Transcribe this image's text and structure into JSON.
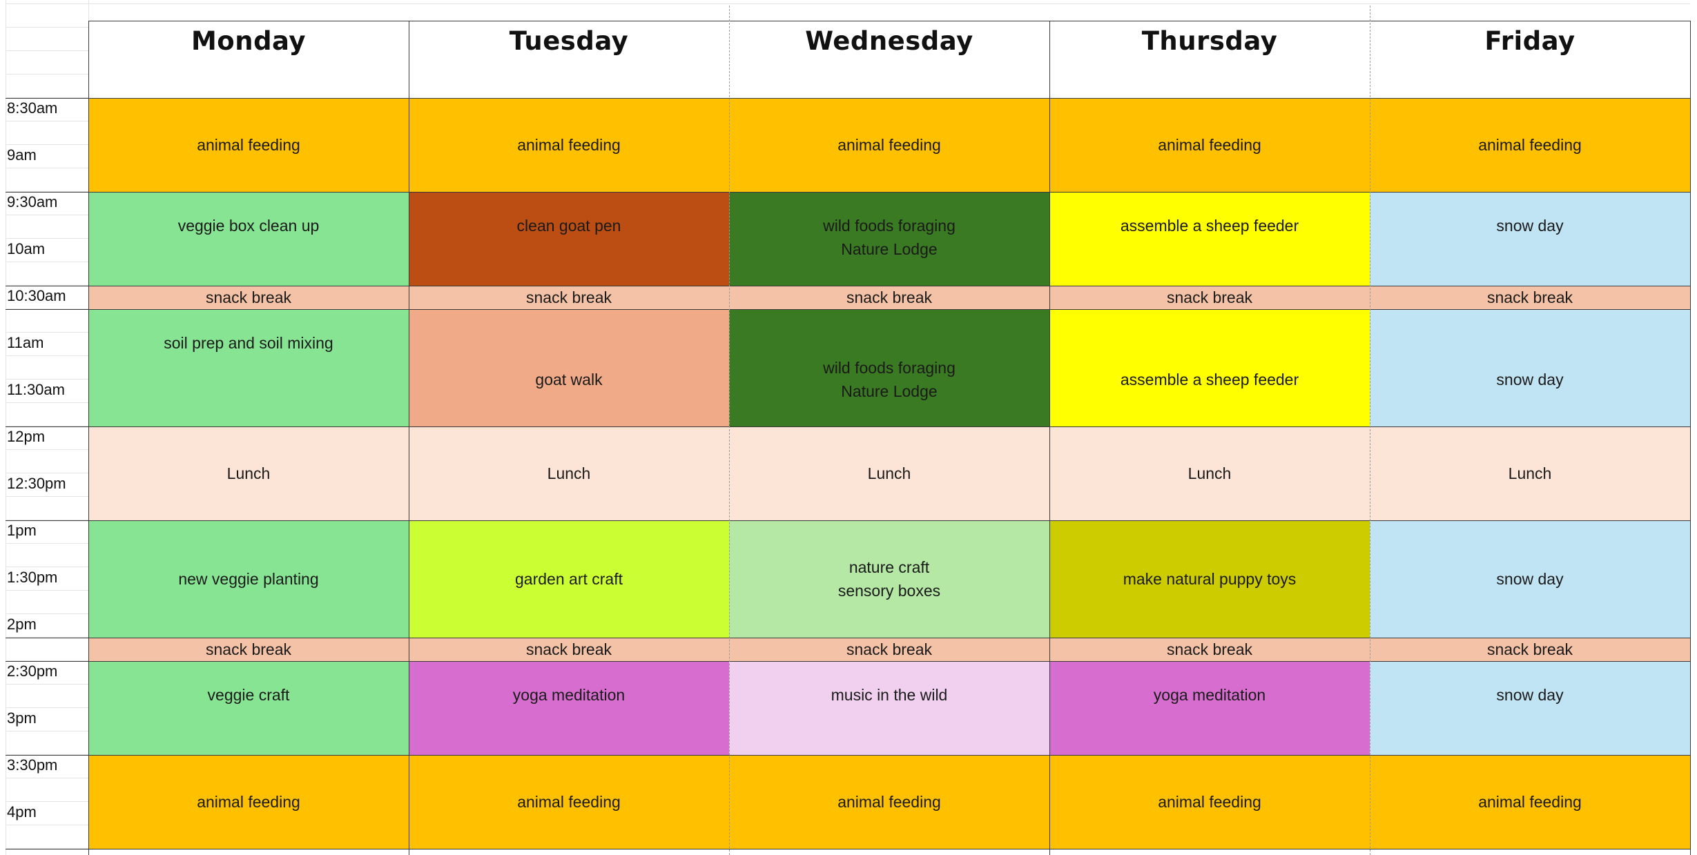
{
  "days": [
    "Monday",
    "Tuesday",
    "Wednesday",
    "Thursday",
    "Friday"
  ],
  "times": [
    "8:30am",
    "9am",
    "9:30am",
    "10am",
    "10:30am",
    "11am",
    "11:30am",
    "12pm",
    "12:30pm",
    "1pm",
    "1:30pm",
    "2pm",
    "2:30pm",
    "3pm",
    "3:30pm",
    "4pm"
  ],
  "colors": {
    "animal_feeding": "#FFC000",
    "snack_break": "#F4C2A6",
    "lunch": "#FCE4D6",
    "snow_day": "#C0E4F4",
    "veggie_green": "#86E492",
    "goat_pen": "#BC4E13",
    "goat_walk": "#F0AA88",
    "wild_foods": "#3A7A22",
    "sheep_feeder": "#FFFF00",
    "garden_art": "#CCFF33",
    "nature_craft": "#B4E8A4",
    "puppy_toys": "#CCCC00",
    "yoga": "#D76DCF",
    "music": "#F0D0EE"
  },
  "blocks": {
    "feeding_am": [
      [
        "animal feeding"
      ],
      [
        "animal feeding"
      ],
      [
        "animal feeding"
      ],
      [
        "animal feeding"
      ],
      [
        "animal feeding"
      ]
    ],
    "morning_1": [
      [
        "veggie box clean up"
      ],
      [
        "clean goat pen"
      ],
      [
        "wild foods foraging",
        "Nature Lodge"
      ],
      [
        "assemble a sheep feeder"
      ],
      [
        "snow day"
      ]
    ],
    "snack_1": [
      [
        "snack break"
      ],
      [
        "snack break"
      ],
      [
        "snack break"
      ],
      [
        "snack break"
      ],
      [
        "snack break"
      ]
    ],
    "morning_2": [
      [
        "soil prep and soil mixing"
      ],
      [
        "goat walk"
      ],
      [
        "wild foods foraging",
        "Nature Lodge"
      ],
      [
        "assemble a sheep feeder"
      ],
      [
        "snow day"
      ]
    ],
    "lunch": [
      [
        "Lunch"
      ],
      [
        "Lunch"
      ],
      [
        "Lunch"
      ],
      [
        "Lunch"
      ],
      [
        "Lunch"
      ]
    ],
    "afternoon_1": [
      [
        "new veggie planting"
      ],
      [
        "garden art craft"
      ],
      [
        "nature craft",
        "sensory boxes"
      ],
      [
        "make natural puppy toys"
      ],
      [
        "snow day"
      ]
    ],
    "snack_2": [
      [
        "snack break"
      ],
      [
        "snack break"
      ],
      [
        "snack break"
      ],
      [
        "snack break"
      ],
      [
        "snack break"
      ]
    ],
    "afternoon_2": [
      [
        "veggie craft"
      ],
      [
        "yoga meditation"
      ],
      [
        "music in the wild"
      ],
      [
        "yoga meditation"
      ],
      [
        "snow day"
      ]
    ],
    "feeding_pm": [
      [
        "animal feeding"
      ],
      [
        "animal feeding"
      ],
      [
        "animal feeding"
      ],
      [
        "animal feeding"
      ],
      [
        "animal feeding"
      ]
    ]
  }
}
